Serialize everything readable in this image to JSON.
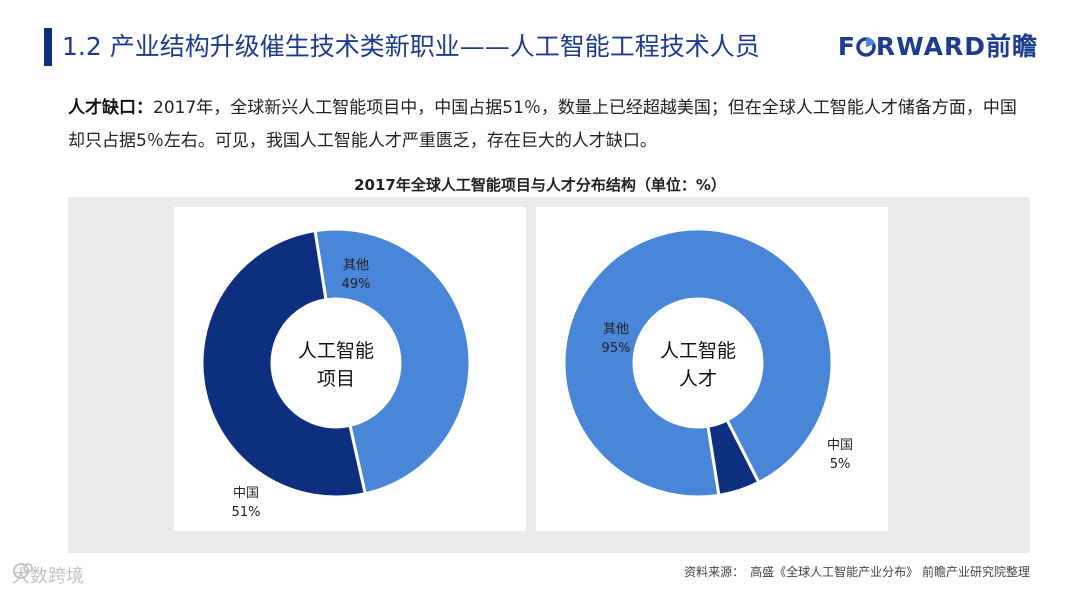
{
  "header": {
    "title": "1.2 产业结构升级催生技术类新职业——人工智能工程技术人员"
  },
  "logo": {
    "prefix": "F",
    "middle": "RWARD",
    "brand_cn": "前瞻"
  },
  "intro": {
    "label": "人才缺口：",
    "text": "2017年，全球新兴人工智能项目中，中国占据51％，数量上已经超越美国；但在全球人工智能人才储备方面，中国却只占据5％左右。可见，我国人工智能人才严重匮乏，存在巨大的人才缺口。"
  },
  "source": {
    "label": "资料来源：",
    "text": "高盛《全球人工智能产业分布》 前瞻产业研究院整理"
  },
  "watermark": {
    "text": "大数跨境"
  },
  "chart_data": [
    {
      "type": "pie",
      "variant": "donut",
      "title": "2017年全球人工智能项目与人才分布结构（单位：%）",
      "center_label": [
        "人工智能",
        "项目"
      ],
      "categories": [
        "其他",
        "中国"
      ],
      "values": [
        49,
        51
      ],
      "labels": [
        "49%",
        "51%"
      ],
      "colors": [
        "#4a86d8",
        "#0e2f80"
      ]
    },
    {
      "type": "pie",
      "variant": "donut",
      "title": "2017年全球人工智能项目与人才分布结构（单位：%）",
      "center_label": [
        "人工智能",
        "人才"
      ],
      "categories": [
        "其他",
        "中国"
      ],
      "values": [
        95,
        5
      ],
      "labels": [
        "95%",
        "5%"
      ],
      "colors": [
        "#4a86d8",
        "#0e2f80"
      ]
    }
  ],
  "colors": {
    "accent": "#1c3d8f",
    "bar": "#0e2f80",
    "panel": "#ffffff",
    "background": "#ebebeb"
  }
}
